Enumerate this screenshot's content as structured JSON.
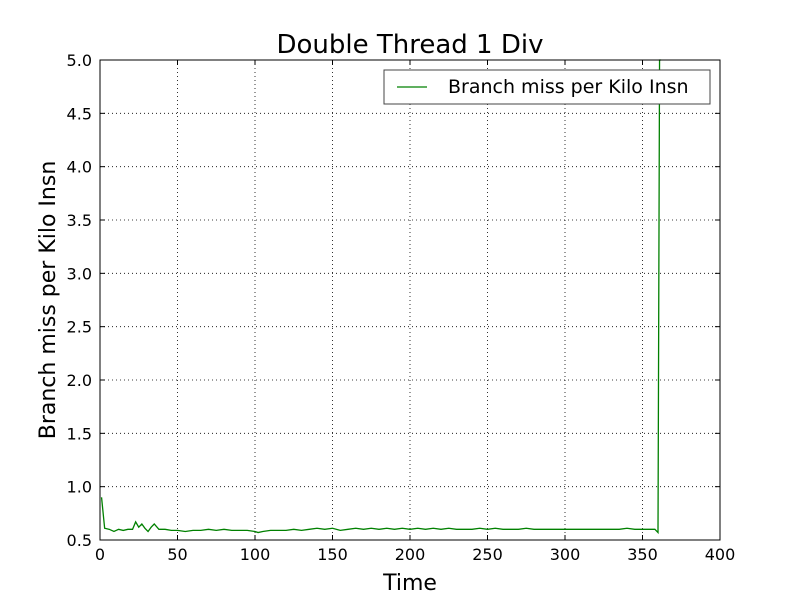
{
  "chart_data": {
    "type": "line",
    "title": "Double Thread 1 Div",
    "xlabel": "Time",
    "ylabel": "Branch miss per Kilo Insn",
    "xlim": [
      0,
      400
    ],
    "ylim": [
      0.5,
      5.0
    ],
    "xticks": [
      "0",
      "50",
      "100",
      "150",
      "200",
      "250",
      "300",
      "350",
      "400"
    ],
    "yticks": [
      "0.5",
      "1.0",
      "1.5",
      "2.0",
      "2.5",
      "3.0",
      "3.5",
      "4.0",
      "4.5",
      "5.0"
    ],
    "grid": true,
    "legend_position": "top-right",
    "series": [
      {
        "name": "Branch miss per Kilo Insn",
        "color": "#008000",
        "x": [
          1,
          3,
          6,
          9,
          12,
          15,
          18,
          21,
          23,
          25,
          27,
          29,
          31,
          33,
          35,
          38,
          42,
          46,
          50,
          55,
          60,
          65,
          70,
          75,
          80,
          85,
          90,
          95,
          100,
          102,
          105,
          110,
          115,
          120,
          125,
          130,
          135,
          140,
          145,
          150,
          155,
          160,
          165,
          170,
          175,
          180,
          185,
          190,
          195,
          200,
          205,
          210,
          215,
          220,
          225,
          230,
          235,
          240,
          245,
          250,
          255,
          260,
          265,
          270,
          275,
          280,
          285,
          290,
          295,
          300,
          305,
          310,
          315,
          320,
          325,
          330,
          335,
          340,
          345,
          350,
          355,
          358,
          360,
          361,
          362
        ],
        "y": [
          0.9,
          0.61,
          0.6,
          0.58,
          0.6,
          0.59,
          0.6,
          0.6,
          0.67,
          0.62,
          0.65,
          0.61,
          0.58,
          0.62,
          0.65,
          0.6,
          0.6,
          0.59,
          0.59,
          0.58,
          0.59,
          0.59,
          0.6,
          0.59,
          0.6,
          0.59,
          0.59,
          0.59,
          0.58,
          0.57,
          0.58,
          0.59,
          0.59,
          0.59,
          0.6,
          0.59,
          0.6,
          0.61,
          0.6,
          0.61,
          0.59,
          0.6,
          0.61,
          0.6,
          0.61,
          0.6,
          0.61,
          0.6,
          0.61,
          0.6,
          0.61,
          0.6,
          0.61,
          0.6,
          0.61,
          0.6,
          0.6,
          0.6,
          0.61,
          0.6,
          0.61,
          0.6,
          0.6,
          0.6,
          0.61,
          0.6,
          0.6,
          0.6,
          0.6,
          0.6,
          0.6,
          0.6,
          0.6,
          0.6,
          0.6,
          0.6,
          0.6,
          0.61,
          0.6,
          0.6,
          0.6,
          0.6,
          0.57,
          5.0,
          5.0
        ]
      }
    ]
  }
}
